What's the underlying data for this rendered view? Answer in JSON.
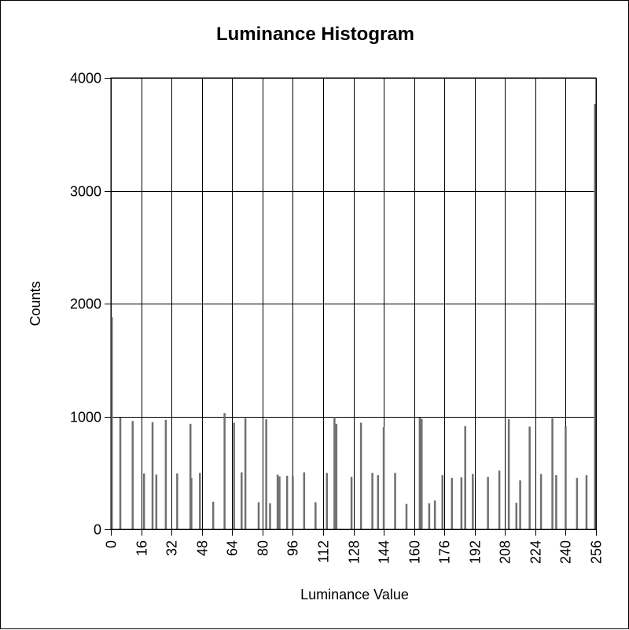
{
  "chart_data": {
    "type": "bar",
    "title": "Luminance Histogram",
    "xlabel": "Luminance Value",
    "ylabel": "Counts",
    "xlim": [
      0,
      256
    ],
    "ylim": [
      0,
      4000
    ],
    "x_ticks": [
      "0",
      "16",
      "32",
      "48",
      "64",
      "80",
      "96",
      "112",
      "128",
      "144",
      "160",
      "176",
      "192",
      "208",
      "224",
      "240",
      "256"
    ],
    "y_ticks": [
      "0",
      "1000",
      "2000",
      "3000",
      "4000"
    ],
    "grid": true,
    "bar_color": "#707070",
    "grid_color": "#000000",
    "points": [
      {
        "x": 0.5,
        "y": 1880
      },
      {
        "x": 5,
        "y": 990
      },
      {
        "x": 11.5,
        "y": 960
      },
      {
        "x": 17.5,
        "y": 495
      },
      {
        "x": 22,
        "y": 950
      },
      {
        "x": 24,
        "y": 485
      },
      {
        "x": 29,
        "y": 970
      },
      {
        "x": 35,
        "y": 495
      },
      {
        "x": 42,
        "y": 935
      },
      {
        "x": 42.5,
        "y": 455
      },
      {
        "x": 47,
        "y": 500
      },
      {
        "x": 54,
        "y": 245
      },
      {
        "x": 60,
        "y": 1030
      },
      {
        "x": 65,
        "y": 945
      },
      {
        "x": 69,
        "y": 505
      },
      {
        "x": 71,
        "y": 985
      },
      {
        "x": 78,
        "y": 240
      },
      {
        "x": 82,
        "y": 975
      },
      {
        "x": 84,
        "y": 230
      },
      {
        "x": 88,
        "y": 485
      },
      {
        "x": 89,
        "y": 470
      },
      {
        "x": 93,
        "y": 475
      },
      {
        "x": 96,
        "y": 470
      },
      {
        "x": 102,
        "y": 505
      },
      {
        "x": 108,
        "y": 240
      },
      {
        "x": 114,
        "y": 500
      },
      {
        "x": 118,
        "y": 995
      },
      {
        "x": 119,
        "y": 935
      },
      {
        "x": 127,
        "y": 465
      },
      {
        "x": 132,
        "y": 945
      },
      {
        "x": 138,
        "y": 500
      },
      {
        "x": 141,
        "y": 480
      },
      {
        "x": 144,
        "y": 905
      },
      {
        "x": 150,
        "y": 500
      },
      {
        "x": 156,
        "y": 225
      },
      {
        "x": 163,
        "y": 990
      },
      {
        "x": 164,
        "y": 980
      },
      {
        "x": 168,
        "y": 230
      },
      {
        "x": 171,
        "y": 255
      },
      {
        "x": 175,
        "y": 480
      },
      {
        "x": 180,
        "y": 455
      },
      {
        "x": 185,
        "y": 460
      },
      {
        "x": 187,
        "y": 915
      },
      {
        "x": 191,
        "y": 490
      },
      {
        "x": 199,
        "y": 465
      },
      {
        "x": 205,
        "y": 520
      },
      {
        "x": 210,
        "y": 975
      },
      {
        "x": 214,
        "y": 235
      },
      {
        "x": 216,
        "y": 435
      },
      {
        "x": 221,
        "y": 910
      },
      {
        "x": 227,
        "y": 490
      },
      {
        "x": 233,
        "y": 985
      },
      {
        "x": 235,
        "y": 480
      },
      {
        "x": 240,
        "y": 915
      },
      {
        "x": 246,
        "y": 455
      },
      {
        "x": 251,
        "y": 480
      },
      {
        "x": 256,
        "y": 3770
      }
    ]
  }
}
